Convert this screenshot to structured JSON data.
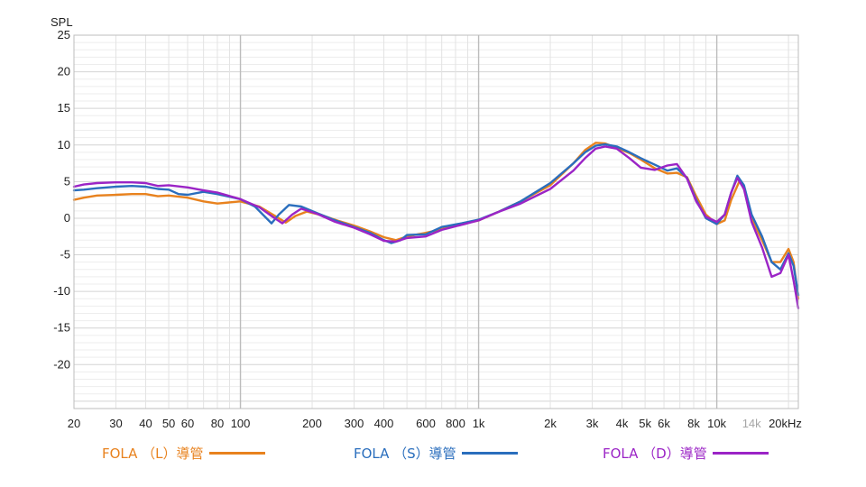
{
  "chart_data": {
    "type": "line",
    "ylabel": "SPL",
    "x_scale": "log",
    "xlim": [
      20,
      22000
    ],
    "ylim": [
      -26,
      25
    ],
    "grid": true,
    "legend_position": "bottom",
    "y_ticks": [
      "25",
      "20",
      "15",
      "10",
      "5",
      "0",
      "-5",
      "-10",
      "-15",
      "-20"
    ],
    "x_ticks": [
      {
        "v": 20,
        "label": "20"
      },
      {
        "v": 30,
        "label": "30"
      },
      {
        "v": 40,
        "label": "40"
      },
      {
        "v": 50,
        "label": "50"
      },
      {
        "v": 60,
        "label": "60"
      },
      {
        "v": 80,
        "label": "80"
      },
      {
        "v": 100,
        "label": "100"
      },
      {
        "v": 200,
        "label": "200"
      },
      {
        "v": 300,
        "label": "300"
      },
      {
        "v": 400,
        "label": "400"
      },
      {
        "v": 600,
        "label": "600"
      },
      {
        "v": 800,
        "label": "800"
      },
      {
        "v": 1000,
        "label": "1k"
      },
      {
        "v": 2000,
        "label": "2k"
      },
      {
        "v": 3000,
        "label": "3k"
      },
      {
        "v": 4000,
        "label": "4k"
      },
      {
        "v": 5000,
        "label": "5k"
      },
      {
        "v": 6000,
        "label": "6k"
      },
      {
        "v": 8000,
        "label": "8k"
      },
      {
        "v": 10000,
        "label": "10k"
      },
      {
        "v": 14000,
        "label": "14k",
        "light": true
      },
      {
        "v": 20000,
        "label": "20kHz"
      }
    ],
    "series": [
      {
        "name": "FOLA （L）導管",
        "color": "#e8821e",
        "points": [
          [
            20,
            2.5
          ],
          [
            22,
            2.8
          ],
          [
            25,
            3.1
          ],
          [
            30,
            3.2
          ],
          [
            35,
            3.3
          ],
          [
            40,
            3.3
          ],
          [
            45,
            3.0
          ],
          [
            50,
            3.1
          ],
          [
            60,
            2.8
          ],
          [
            70,
            2.3
          ],
          [
            80,
            2.0
          ],
          [
            100,
            2.3
          ],
          [
            120,
            1.6
          ],
          [
            140,
            0.3
          ],
          [
            155,
            -0.6
          ],
          [
            170,
            0.3
          ],
          [
            190,
            0.9
          ],
          [
            220,
            0.4
          ],
          [
            260,
            -0.4
          ],
          [
            300,
            -1.0
          ],
          [
            350,
            -1.8
          ],
          [
            400,
            -2.6
          ],
          [
            450,
            -3.0
          ],
          [
            500,
            -2.5
          ],
          [
            600,
            -2.0
          ],
          [
            700,
            -1.5
          ],
          [
            850,
            -0.8
          ],
          [
            1000,
            -0.3
          ],
          [
            1200,
            0.8
          ],
          [
            1500,
            2.3
          ],
          [
            2000,
            4.5
          ],
          [
            2500,
            7.5
          ],
          [
            2800,
            9.3
          ],
          [
            3100,
            10.3
          ],
          [
            3400,
            10.2
          ],
          [
            3800,
            9.6
          ],
          [
            4300,
            8.9
          ],
          [
            4800,
            8.0
          ],
          [
            5500,
            6.8
          ],
          [
            6200,
            6.1
          ],
          [
            6800,
            6.2
          ],
          [
            7500,
            5.6
          ],
          [
            8200,
            3.0
          ],
          [
            9000,
            0.5
          ],
          [
            10000,
            -0.8
          ],
          [
            10800,
            -0.3
          ],
          [
            11500,
            2.5
          ],
          [
            12500,
            5.2
          ],
          [
            13200,
            3.5
          ],
          [
            14000,
            0.0
          ],
          [
            15500,
            -3.0
          ],
          [
            17000,
            -6.0
          ],
          [
            18500,
            -6.0
          ],
          [
            20000,
            -4.2
          ],
          [
            21000,
            -6.0
          ],
          [
            22000,
            -11.0
          ]
        ]
      },
      {
        "name": "FOLA （S）導管",
        "color": "#2a6ebd",
        "points": [
          [
            20,
            3.8
          ],
          [
            22,
            3.9
          ],
          [
            25,
            4.1
          ],
          [
            30,
            4.3
          ],
          [
            35,
            4.4
          ],
          [
            40,
            4.3
          ],
          [
            45,
            4.0
          ],
          [
            50,
            3.9
          ],
          [
            55,
            3.3
          ],
          [
            60,
            3.2
          ],
          [
            70,
            3.6
          ],
          [
            80,
            3.3
          ],
          [
            100,
            2.6
          ],
          [
            115,
            1.6
          ],
          [
            125,
            0.4
          ],
          [
            135,
            -0.7
          ],
          [
            145,
            0.5
          ],
          [
            160,
            1.8
          ],
          [
            180,
            1.6
          ],
          [
            210,
            0.7
          ],
          [
            250,
            -0.3
          ],
          [
            300,
            -1.2
          ],
          [
            350,
            -2.0
          ],
          [
            400,
            -3.0
          ],
          [
            430,
            -3.4
          ],
          [
            470,
            -3.0
          ],
          [
            500,
            -2.3
          ],
          [
            600,
            -2.2
          ],
          [
            700,
            -1.2
          ],
          [
            850,
            -0.7
          ],
          [
            1000,
            -0.2
          ],
          [
            1200,
            0.8
          ],
          [
            1500,
            2.3
          ],
          [
            2000,
            4.8
          ],
          [
            2500,
            7.5
          ],
          [
            2800,
            9.0
          ],
          [
            3100,
            9.9
          ],
          [
            3400,
            10.1
          ],
          [
            3800,
            9.8
          ],
          [
            4300,
            9.0
          ],
          [
            4800,
            8.2
          ],
          [
            5500,
            7.3
          ],
          [
            6200,
            6.5
          ],
          [
            6800,
            6.8
          ],
          [
            7500,
            5.5
          ],
          [
            8200,
            2.5
          ],
          [
            9000,
            0.0
          ],
          [
            10000,
            -0.8
          ],
          [
            10800,
            0.5
          ],
          [
            11500,
            3.5
          ],
          [
            12200,
            5.8
          ],
          [
            13000,
            4.5
          ],
          [
            14000,
            0.5
          ],
          [
            15500,
            -2.5
          ],
          [
            17000,
            -6.0
          ],
          [
            18500,
            -7.0
          ],
          [
            20000,
            -4.8
          ],
          [
            21000,
            -6.5
          ],
          [
            22000,
            -10.5
          ]
        ]
      },
      {
        "name": "FOLA （D）導管",
        "color": "#9b24c6",
        "points": [
          [
            20,
            4.3
          ],
          [
            22,
            4.6
          ],
          [
            25,
            4.8
          ],
          [
            30,
            4.9
          ],
          [
            35,
            4.9
          ],
          [
            40,
            4.8
          ],
          [
            45,
            4.4
          ],
          [
            50,
            4.5
          ],
          [
            60,
            4.2
          ],
          [
            70,
            3.8
          ],
          [
            80,
            3.5
          ],
          [
            100,
            2.6
          ],
          [
            120,
            1.5
          ],
          [
            135,
            0.3
          ],
          [
            150,
            -0.7
          ],
          [
            165,
            0.5
          ],
          [
            180,
            1.3
          ],
          [
            210,
            0.6
          ],
          [
            250,
            -0.5
          ],
          [
            300,
            -1.3
          ],
          [
            350,
            -2.2
          ],
          [
            400,
            -3.1
          ],
          [
            450,
            -3.2
          ],
          [
            500,
            -2.7
          ],
          [
            600,
            -2.5
          ],
          [
            700,
            -1.6
          ],
          [
            850,
            -0.9
          ],
          [
            1000,
            -0.3
          ],
          [
            1200,
            0.8
          ],
          [
            1500,
            2.0
          ],
          [
            2000,
            4.0
          ],
          [
            2500,
            6.5
          ],
          [
            2800,
            8.2
          ],
          [
            3100,
            9.5
          ],
          [
            3400,
            9.8
          ],
          [
            3800,
            9.5
          ],
          [
            4300,
            8.2
          ],
          [
            4800,
            6.9
          ],
          [
            5500,
            6.6
          ],
          [
            6200,
            7.2
          ],
          [
            6800,
            7.4
          ],
          [
            7500,
            5.4
          ],
          [
            8200,
            2.3
          ],
          [
            9000,
            0.2
          ],
          [
            10000,
            -0.5
          ],
          [
            10800,
            0.5
          ],
          [
            11500,
            3.5
          ],
          [
            12200,
            5.5
          ],
          [
            13000,
            4.0
          ],
          [
            14000,
            -0.5
          ],
          [
            15500,
            -4.0
          ],
          [
            17000,
            -8.0
          ],
          [
            18500,
            -7.5
          ],
          [
            20000,
            -5.0
          ],
          [
            21000,
            -8.5
          ],
          [
            22000,
            -12.3
          ]
        ]
      }
    ]
  }
}
